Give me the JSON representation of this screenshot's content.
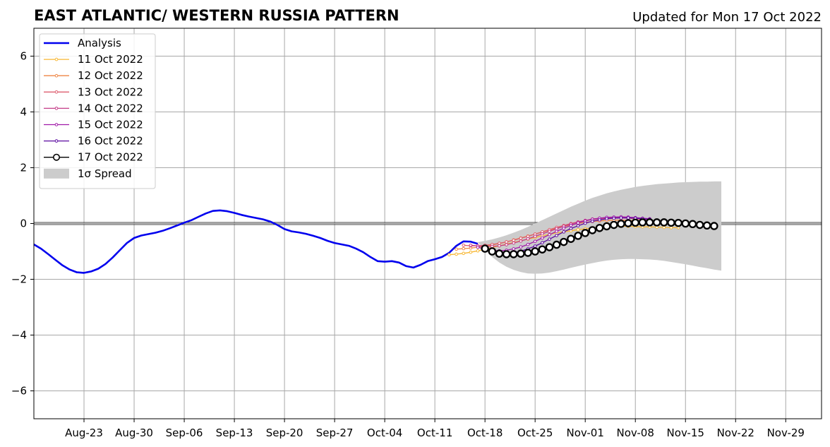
{
  "chart_data": {
    "type": "line",
    "title": "EAST ATLANTIC/ WESTERN RUSSIA PATTERN",
    "subtitle": "Updated for Mon 17 Oct 2022",
    "xlabel": "",
    "ylabel": "",
    "x_range": [
      "2022-08-16",
      "2022-12-04"
    ],
    "ylim": [
      -7,
      7
    ],
    "y_ticks": [
      -6,
      -4,
      -2,
      0,
      2,
      4,
      6
    ],
    "y_tick_labels": [
      "−6",
      "−4",
      "−2",
      "0",
      "2",
      "4",
      "6"
    ],
    "x_ticks": [
      {
        "date": "2022-08-23",
        "label": "Aug-23"
      },
      {
        "date": "2022-08-30",
        "label": "Aug-30"
      },
      {
        "date": "2022-09-06",
        "label": "Sep-06"
      },
      {
        "date": "2022-09-13",
        "label": "Sep-13"
      },
      {
        "date": "2022-09-20",
        "label": "Sep-20"
      },
      {
        "date": "2022-09-27",
        "label": "Sep-27"
      },
      {
        "date": "2022-10-04",
        "label": "Oct-04"
      },
      {
        "date": "2022-10-11",
        "label": "Oct-11"
      },
      {
        "date": "2022-10-18",
        "label": "Oct-18"
      },
      {
        "date": "2022-10-25",
        "label": "Oct-25"
      },
      {
        "date": "2022-11-01",
        "label": "Nov-01"
      },
      {
        "date": "2022-11-08",
        "label": "Nov-08"
      },
      {
        "date": "2022-11-15",
        "label": "Nov-15"
      },
      {
        "date": "2022-11-22",
        "label": "Nov-22"
      },
      {
        "date": "2022-11-29",
        "label": "Nov-29"
      }
    ],
    "grid": true,
    "legend_position": "top-left",
    "legend": [
      "Analysis",
      "11 Oct 2022",
      "12 Oct 2022",
      "13 Oct 2022",
      "14 Oct 2022",
      "15 Oct 2022",
      "16 Oct 2022",
      "17 Oct 2022",
      "1σ Spread"
    ],
    "analysis": {
      "name": "Analysis",
      "color": "#0000ee",
      "start": "2022-08-16",
      "values": [
        -0.75,
        -0.9,
        -1.1,
        -1.3,
        -1.5,
        -1.65,
        -1.75,
        -1.77,
        -1.72,
        -1.62,
        -1.45,
        -1.22,
        -0.96,
        -0.7,
        -0.52,
        -0.43,
        -0.38,
        -0.33,
        -0.26,
        -0.17,
        -0.07,
        0.03,
        0.12,
        0.24,
        0.36,
        0.45,
        0.47,
        0.44,
        0.38,
        0.31,
        0.25,
        0.2,
        0.15,
        0.07,
        -0.05,
        -0.2,
        -0.28,
        -0.32,
        -0.37,
        -0.44,
        -0.52,
        -0.62,
        -0.7,
        -0.75,
        -0.8,
        -0.9,
        -1.03,
        -1.2,
        -1.35,
        -1.37,
        -1.35,
        -1.4,
        -1.53,
        -1.58,
        -1.48,
        -1.35,
        -1.28,
        -1.2,
        -1.05,
        -0.8,
        -0.64,
        -0.65,
        -0.73
      ]
    },
    "forecasts": [
      {
        "name": "11 Oct 2022",
        "color": "#f7b733",
        "start": "2022-10-13",
        "values": [
          -1.12,
          -1.1,
          -1.07,
          -1.03,
          -0.98,
          -0.92,
          -0.86,
          -0.8,
          -0.74,
          -0.68,
          -0.62,
          -0.56,
          -0.5,
          -0.44,
          -0.39,
          -0.34,
          -0.3,
          -0.26,
          -0.22,
          -0.19,
          -0.16,
          -0.14,
          -0.12,
          -0.1,
          -0.1,
          -0.1,
          -0.11,
          -0.12,
          -0.12,
          -0.13,
          -0.14,
          -0.15,
          -0.15
        ]
      },
      {
        "name": "12 Oct 2022",
        "color": "#ee8644",
        "start": "2022-10-14",
        "values": [
          -0.92,
          -0.9,
          -0.88,
          -0.85,
          -0.81,
          -0.77,
          -0.72,
          -0.66,
          -0.59,
          -0.52,
          -0.45,
          -0.38,
          -0.31,
          -0.24,
          -0.17,
          -0.11,
          -0.05,
          0.0,
          0.04,
          0.07,
          0.09,
          0.11,
          0.12,
          0.12,
          0.11,
          0.1,
          0.08,
          0.06,
          0.04
        ]
      },
      {
        "name": "13 Oct 2022",
        "color": "#dd5e6f",
        "start": "2022-10-15",
        "values": [
          -0.78,
          -0.8,
          -0.8,
          -0.78,
          -0.75,
          -0.71,
          -0.66,
          -0.6,
          -0.53,
          -0.46,
          -0.38,
          -0.3,
          -0.22,
          -0.14,
          -0.07,
          0.0,
          0.06,
          0.11,
          0.14,
          0.17,
          0.19,
          0.2,
          0.2,
          0.19,
          0.17,
          0.15,
          0.13
        ]
      },
      {
        "name": "14 Oct 2022",
        "color": "#c53c88",
        "start": "2022-10-16",
        "values": [
          -0.78,
          -0.8,
          -0.82,
          -0.82,
          -0.8,
          -0.76,
          -0.7,
          -0.63,
          -0.55,
          -0.46,
          -0.37,
          -0.28,
          -0.19,
          -0.1,
          -0.02,
          0.05,
          0.11,
          0.16,
          0.19,
          0.21,
          0.22,
          0.22,
          0.21,
          0.19,
          0.17,
          0.15
        ]
      },
      {
        "name": "15 Oct 2022",
        "color": "#a01aa8",
        "start": "2022-10-17",
        "values": [
          -0.85,
          -0.92,
          -0.97,
          -0.98,
          -0.96,
          -0.91,
          -0.84,
          -0.75,
          -0.64,
          -0.52,
          -0.4,
          -0.28,
          -0.17,
          -0.07,
          0.02,
          0.09,
          0.15,
          0.19,
          0.22,
          0.23,
          0.24,
          0.23,
          0.21,
          0.19,
          0.17
        ]
      },
      {
        "name": "16 Oct 2022",
        "color": "#5a0aa0",
        "start": "2022-10-18",
        "values": [
          -0.9,
          -0.98,
          -1.04,
          -1.06,
          -1.04,
          -0.99,
          -0.91,
          -0.81,
          -0.69,
          -0.56,
          -0.43,
          -0.3,
          -0.18,
          -0.08,
          0.01,
          0.08,
          0.13,
          0.17,
          0.19,
          0.2,
          0.2,
          0.19,
          0.17,
          0.15
        ]
      },
      {
        "name": "17 Oct 2022",
        "color": "#000000",
        "start": "2022-10-18",
        "values": [
          -0.9,
          -1.0,
          -1.08,
          -1.1,
          -1.1,
          -1.08,
          -1.05,
          -1.0,
          -0.93,
          -0.85,
          -0.76,
          -0.66,
          -0.55,
          -0.44,
          -0.34,
          -0.24,
          -0.16,
          -0.1,
          -0.05,
          -0.01,
          0.01,
          0.03,
          0.04,
          0.04,
          0.04,
          0.04,
          0.03,
          0.02,
          0.0,
          -0.02,
          -0.05,
          -0.07,
          -0.09
        ]
      }
    ],
    "spread": {
      "name": "1σ Spread",
      "color": "#cccccc",
      "start": "2022-10-17",
      "upper": [
        -0.67,
        -0.62,
        -0.57,
        -0.5,
        -0.42,
        -0.33,
        -0.23,
        -0.12,
        0.0,
        0.12,
        0.24,
        0.36,
        0.48,
        0.6,
        0.71,
        0.82,
        0.92,
        1.0,
        1.08,
        1.15,
        1.21,
        1.26,
        1.31,
        1.35,
        1.38,
        1.41,
        1.43,
        1.45,
        1.47,
        1.48,
        1.49,
        1.5,
        1.5,
        1.51,
        1.51
      ],
      "lower": [
        -0.67,
        -0.95,
        -1.2,
        -1.4,
        -1.55,
        -1.66,
        -1.74,
        -1.79,
        -1.8,
        -1.79,
        -1.76,
        -1.71,
        -1.65,
        -1.59,
        -1.53,
        -1.47,
        -1.42,
        -1.37,
        -1.33,
        -1.3,
        -1.28,
        -1.27,
        -1.27,
        -1.28,
        -1.29,
        -1.31,
        -1.34,
        -1.38,
        -1.42,
        -1.46,
        -1.51,
        -1.56,
        -1.6,
        -1.65,
        -1.69
      ]
    }
  }
}
